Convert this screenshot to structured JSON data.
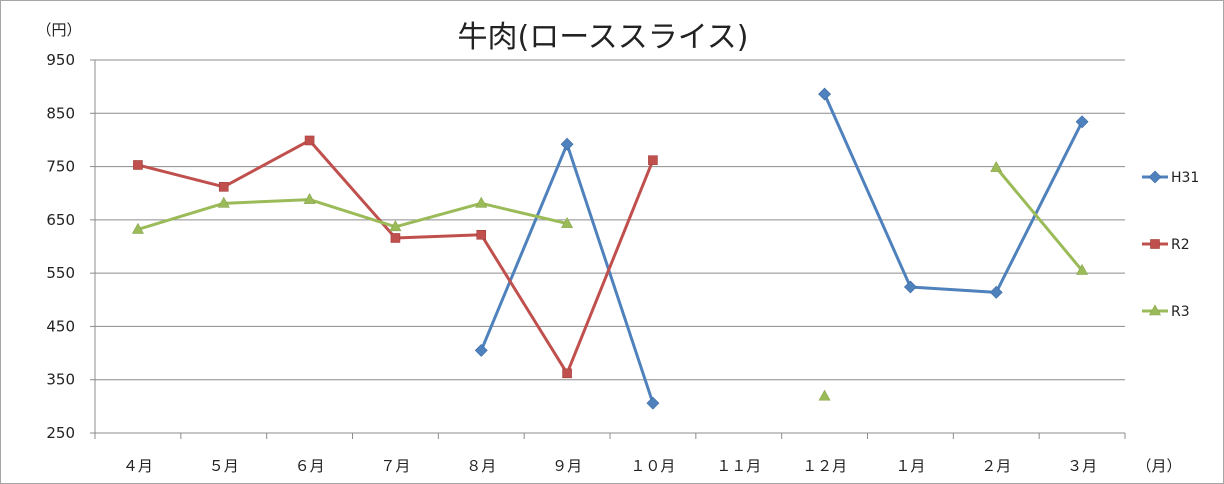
{
  "chart_data": {
    "type": "line",
    "title": "牛肉(ローススライス)",
    "ylabel": "（円）",
    "xlabel": "（月）",
    "categories": [
      "４月",
      "５月",
      "６月",
      "７月",
      "８月",
      "９月",
      "１０月",
      "１１月",
      "１２月",
      "１月",
      "２月",
      "３月"
    ],
    "ylim": [
      250,
      950
    ],
    "yticks": [
      250,
      350,
      450,
      550,
      650,
      750,
      850,
      950
    ],
    "grid": true,
    "legend_position": "right",
    "series": [
      {
        "name": "H31",
        "color": "#4f81bd",
        "marker": "diamond",
        "values": [
          null,
          null,
          null,
          null,
          405,
          792,
          306,
          null,
          886,
          524,
          514,
          834
        ]
      },
      {
        "name": "R2",
        "color": "#c0504d",
        "marker": "square",
        "values": [
          753,
          712,
          799,
          616,
          622,
          362,
          762,
          null,
          null,
          null,
          null,
          null
        ]
      },
      {
        "name": "R3",
        "color": "#9bbb59",
        "marker": "triangle",
        "values": [
          632,
          681,
          688,
          637,
          681,
          643,
          null,
          null,
          319,
          null,
          748,
          555
        ]
      }
    ]
  }
}
